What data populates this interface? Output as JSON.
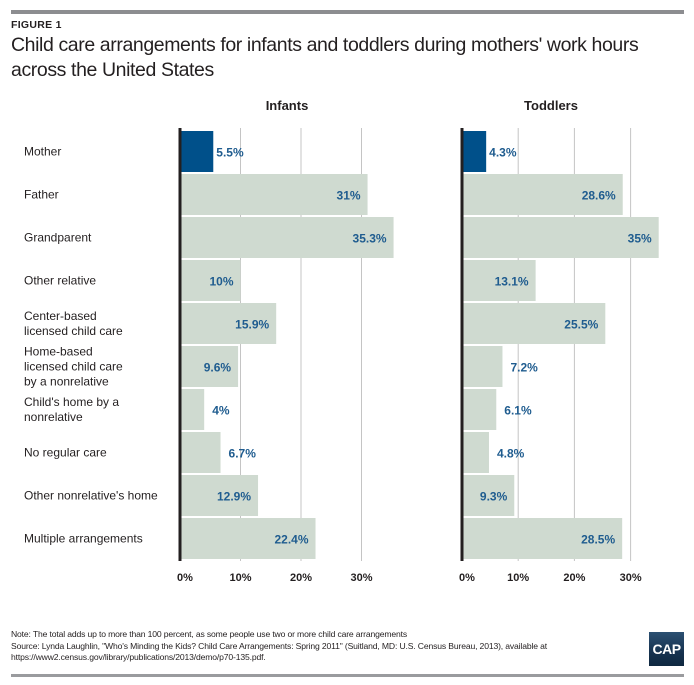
{
  "header": {
    "figure_label": "FIGURE 1",
    "title": "Child care arrangements for infants and toddlers during mothers' work hours across the United States"
  },
  "footer": {
    "note": "Note: The total adds up to more than 100 percent, as some people use two or more child care arrangements",
    "source_line1": "Source: Lynda Laughlin, \"Who's Minding the Kids? Child Care Arrangements: Spring 2011\" (Suitland, MD: U.S. Census Bureau, 2013), available at",
    "source_line2": "https://www2.census.gov/library/publications/2013/demo/p70-135.pdf.",
    "logo_text": "CAP"
  },
  "colors": {
    "highlight_bar": "#00508a",
    "bar": "#cfdad0",
    "value_label": "#1f5c8f",
    "axis": "#231f20",
    "gridline": "#c4c4c4"
  },
  "chart_data": {
    "type": "bar",
    "orientation": "horizontal",
    "title": "Child care arrangements for infants and toddlers during mothers' work hours across the United States",
    "categories": [
      [
        "Mother"
      ],
      [
        "Father"
      ],
      [
        "Grandparent"
      ],
      [
        "Other relative"
      ],
      [
        "Center-based",
        "licensed child care"
      ],
      [
        "Home-based",
        "licensed child care",
        "by a nonrelative"
      ],
      [
        "Child's home by a",
        "nonrelative"
      ],
      [
        "No regular care"
      ],
      [
        "Other nonrelative's home"
      ],
      [
        "Multiple arrangements"
      ]
    ],
    "series": [
      {
        "name": "Infants",
        "values": [
          5.5,
          31,
          35.3,
          10,
          15.9,
          9.6,
          4,
          6.7,
          12.9,
          22.4
        ],
        "labels": [
          "5.5%",
          "31%",
          "35.3%",
          "10%",
          "15.9%",
          "9.6%",
          "4%",
          "6.7%",
          "12.9%",
          "22.4%"
        ]
      },
      {
        "name": "Toddlers",
        "values": [
          4.3,
          28.6,
          35,
          13.1,
          25.5,
          7.2,
          6.1,
          4.8,
          9.3,
          28.5
        ],
        "labels": [
          "4.3%",
          "28.6%",
          "35%",
          "13.1%",
          "25.5%",
          "7.2%",
          "6.1%",
          "4.8%",
          "9.3%",
          "28.5%"
        ]
      }
    ],
    "highlight_category_index": 0,
    "xticks": [
      0,
      10,
      20,
      30
    ],
    "xtick_labels": [
      "0%",
      "10%",
      "20%",
      "30%"
    ],
    "xlim": [
      0,
      36
    ],
    "xlabel": "",
    "ylabel": "",
    "grid": true,
    "legend": "none"
  }
}
